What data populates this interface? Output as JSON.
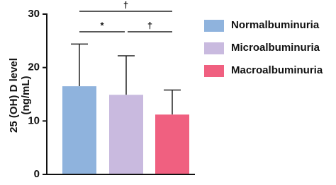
{
  "chart_data": {
    "type": "bar",
    "ylabel": [
      "25 (OH) D level",
      "(ng/mL)"
    ],
    "ylim": [
      0,
      30
    ],
    "yticks": [
      0,
      10,
      20,
      30
    ],
    "series": [
      {
        "name": "Normalbuminuria",
        "color": "#8fb3dd",
        "values": [
          16.5
        ],
        "errors": [
          7.9
        ]
      },
      {
        "name": "Microalbuminuria",
        "color": "#c9badf",
        "values": [
          14.9
        ],
        "errors": [
          7.3
        ]
      },
      {
        "name": "Macroalbuminuria",
        "color": "#f06080",
        "values": [
          11.2
        ],
        "errors": [
          4.6
        ]
      }
    ],
    "annotations": [
      {
        "text": "†",
        "from": 0,
        "to": 2
      },
      {
        "text": "*",
        "from": 0,
        "to": 1
      },
      {
        "text": "†",
        "from": 1,
        "to": 2
      }
    ]
  }
}
